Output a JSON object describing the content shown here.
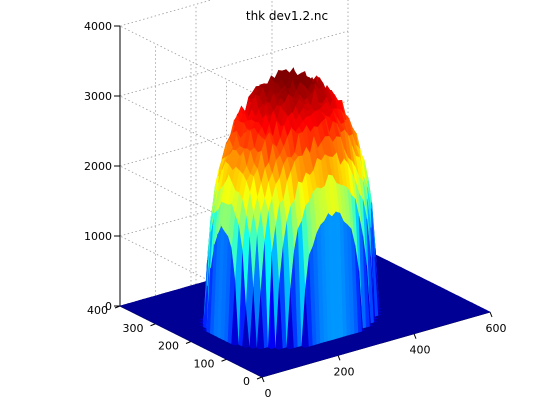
{
  "chart_data": {
    "type": "surface",
    "title": "thk dev1.2.nc",
    "colormap": "jet",
    "background": "#ffffff",
    "grid": true,
    "x": {
      "label": "",
      "range": [
        0,
        600
      ],
      "ticks": [
        0,
        200,
        400,
        600
      ],
      "tick_labels": [
        "0",
        "200",
        "400",
        "600"
      ]
    },
    "y": {
      "label": "",
      "range": [
        0,
        400
      ],
      "ticks": [
        0,
        100,
        200,
        300,
        400
      ],
      "tick_labels": [
        "0",
        "100",
        "200",
        "300",
        "400"
      ]
    },
    "z": {
      "label": "",
      "range": [
        0,
        4000
      ],
      "ticks": [
        0,
        1000,
        2000,
        3000,
        4000
      ],
      "tick_labels": [
        "0",
        "1000",
        "2000",
        "3000",
        "4000"
      ]
    },
    "surface": {
      "description_values": {
        "base_thickness": 0,
        "peak_thickness": 3400,
        "dome_x_range": [
          60,
          440
        ],
        "dome_y_range": [
          60,
          310
        ],
        "dome_center": [
          250,
          185
        ]
      }
    }
  }
}
